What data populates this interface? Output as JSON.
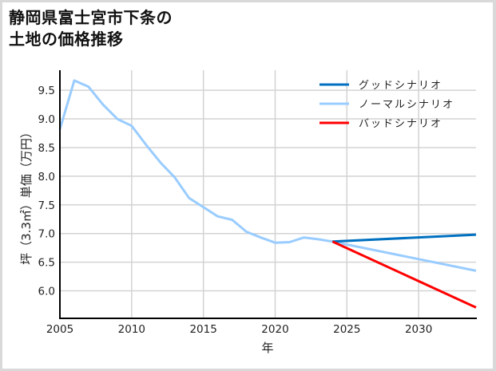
{
  "title_line1": "静岡県富士宮市下条の",
  "title_line2": "土地の価格推移",
  "chart_data": {
    "type": "line",
    "title": "静岡県富士宮市下条の土地の価格推移",
    "xlabel": "年",
    "ylabel": "坪（3.3㎡）単価（万円）",
    "xlim": [
      2005,
      2034
    ],
    "ylim": [
      5.52,
      9.85
    ],
    "grid": true,
    "legend_position": "upper right",
    "x_ticks": [
      "2005",
      "2010",
      "2015",
      "2020",
      "2025",
      "2030"
    ],
    "y_ticks": [
      "6.0",
      "6.5",
      "7.0",
      "7.5",
      "8.0",
      "8.5",
      "9.0",
      "9.5"
    ],
    "series": [
      {
        "name": "グッドシナリオ",
        "color": "#0070c0",
        "x": [
          2024,
          2034
        ],
        "values": [
          6.86,
          6.98
        ]
      },
      {
        "name": "ノーマルシナリオ",
        "color": "#99ccff",
        "x": [
          2005,
          2006,
          2007,
          2008,
          2009,
          2010,
          2011,
          2012,
          2013,
          2014,
          2015,
          2016,
          2017,
          2018,
          2019,
          2020,
          2021,
          2022,
          2023,
          2024,
          2034
        ],
        "values": [
          8.82,
          9.67,
          9.56,
          9.25,
          9.0,
          8.88,
          8.55,
          8.24,
          7.98,
          7.62,
          7.46,
          7.3,
          7.24,
          7.03,
          6.93,
          6.84,
          6.85,
          6.93,
          6.9,
          6.86,
          6.35
        ]
      },
      {
        "name": "バッドシナリオ",
        "color": "#ff0000",
        "x": [
          2024,
          2034
        ],
        "values": [
          6.86,
          5.71
        ]
      }
    ]
  }
}
